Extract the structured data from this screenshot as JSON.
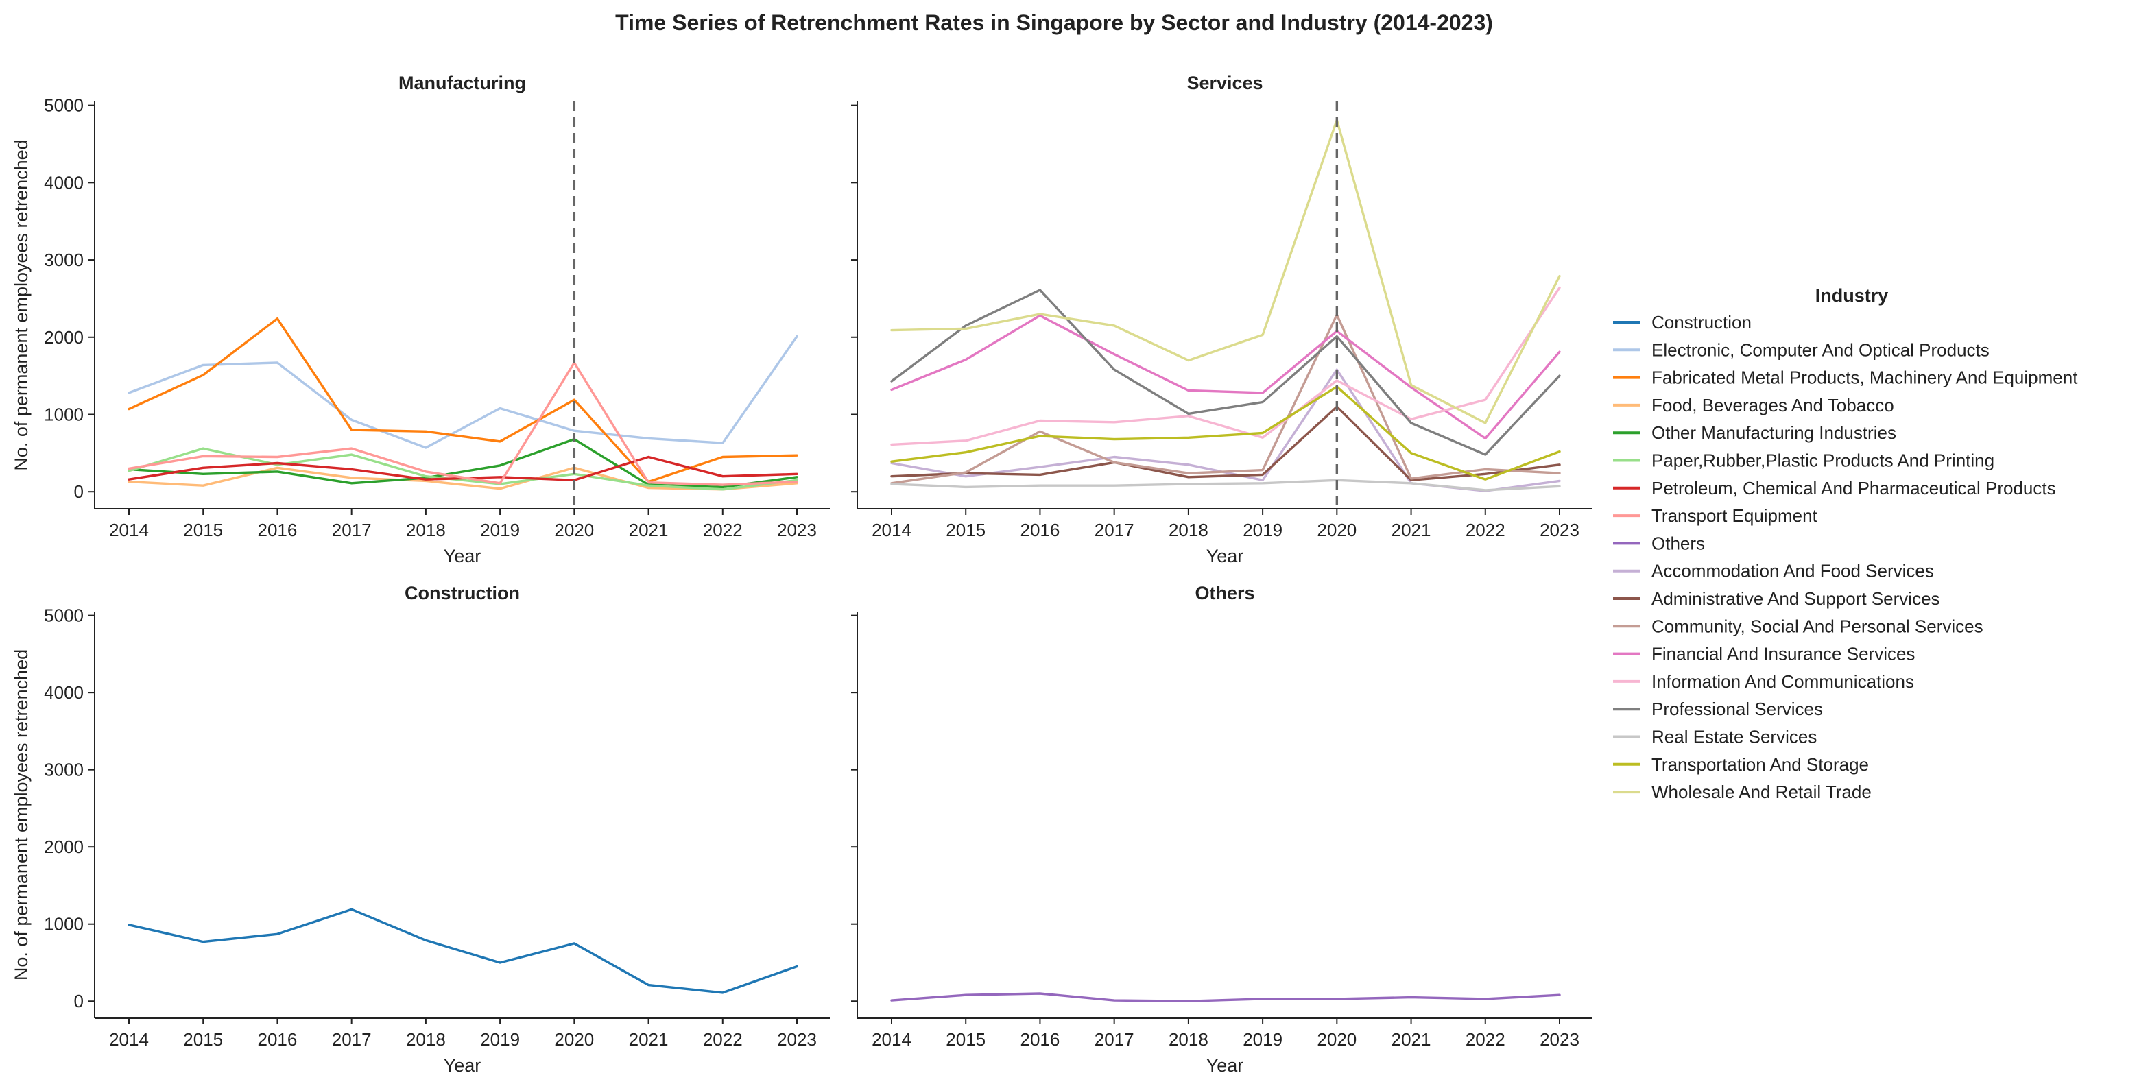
{
  "figure": {
    "title": "Time Series of Retrenchment Rates in Singapore by Sector and Industry (2014-2023)"
  },
  "chart_data": {
    "type": "line",
    "title": "Time Series of Retrenchment Rates in Singapore by Sector and Industry (2014-2023)",
    "x": [
      2014,
      2015,
      2016,
      2017,
      2018,
      2019,
      2020,
      2021,
      2022,
      2023
    ],
    "xlabel": "Year",
    "ylabel": "No. of permanent employees retrenched",
    "ylim": [
      -220,
      5050
    ],
    "yticks": [
      0,
      1000,
      2000,
      3000,
      4000,
      5000
    ],
    "grid": false,
    "reference_line_x": 2020,
    "legend": {
      "title": "Industry",
      "placement": "right"
    },
    "industries": [
      {
        "name": "Construction",
        "color": "#1f77b4"
      },
      {
        "name": "Electronic, Computer And Optical Products",
        "color": "#aec7e8"
      },
      {
        "name": "Fabricated Metal Products, Machinery And Equipment",
        "color": "#ff7f0e"
      },
      {
        "name": "Food, Beverages And Tobacco",
        "color": "#ffbb78"
      },
      {
        "name": "Other Manufacturing Industries",
        "color": "#2ca02c"
      },
      {
        "name": "Paper,Rubber,Plastic Products And Printing",
        "color": "#98df8a"
      },
      {
        "name": "Petroleum, Chemical And Pharmaceutical Products",
        "color": "#d62728"
      },
      {
        "name": "Transport Equipment",
        "color": "#ff9896"
      },
      {
        "name": "Others",
        "color": "#9467bd"
      },
      {
        "name": "Accommodation And Food Services",
        "color": "#c5b0d5"
      },
      {
        "name": "Administrative And Support Services",
        "color": "#8c564b"
      },
      {
        "name": "Community, Social And Personal Services",
        "color": "#c49c94"
      },
      {
        "name": "Financial And Insurance Services",
        "color": "#e377c2"
      },
      {
        "name": "Information And Communications",
        "color": "#f7b6d2"
      },
      {
        "name": "Professional Services",
        "color": "#7f7f7f"
      },
      {
        "name": "Real Estate Services",
        "color": "#c7c7c7"
      },
      {
        "name": "Transportation And Storage",
        "color": "#bcbd22"
      },
      {
        "name": "Wholesale And Retail Trade",
        "color": "#dbdb8d"
      }
    ],
    "panels": [
      {
        "title": "Manufacturing",
        "show_xlabel": true,
        "show_ylabel": true,
        "show_ytick_labels": true,
        "show_ref_line": true,
        "series": [
          {
            "name": "Electronic, Computer And Optical Products",
            "values": [
              1280,
              1640,
              1670,
              930,
              570,
              1080,
              790,
              690,
              630,
              2010
            ]
          },
          {
            "name": "Fabricated Metal Products, Machinery And Equipment",
            "values": [
              1070,
              1510,
              2240,
              800,
              780,
              650,
              1190,
              130,
              450,
              470
            ]
          },
          {
            "name": "Food, Beverages And Tobacco",
            "values": [
              130,
              80,
              310,
              180,
              140,
              40,
              310,
              50,
              30,
              110
            ]
          },
          {
            "name": "Other Manufacturing Industries",
            "values": [
              290,
              230,
              260,
              110,
              180,
              340,
              680,
              90,
              60,
              190
            ]
          },
          {
            "name": "Paper,Rubber,Plastic Products And Printing",
            "values": [
              270,
              560,
              350,
              480,
              200,
              100,
              230,
              80,
              30,
              150
            ]
          },
          {
            "name": "Petroleum, Chemical And Pharmaceutical Products",
            "values": [
              160,
              310,
              370,
              290,
              160,
              190,
              150,
              450,
              200,
              230
            ]
          },
          {
            "name": "Transport Equipment",
            "values": [
              300,
              460,
              450,
              560,
              260,
              110,
              1670,
              120,
              90,
              130
            ]
          }
        ]
      },
      {
        "title": "Services",
        "show_xlabel": true,
        "show_ylabel": false,
        "show_ytick_labels": false,
        "show_ref_line": true,
        "series": [
          {
            "name": "Accommodation And Food Services",
            "values": [
              370,
              200,
              320,
              450,
              350,
              150,
              1580,
              110,
              10,
              140
            ]
          },
          {
            "name": "Administrative And Support Services",
            "values": [
              200,
              240,
              220,
              380,
              190,
              220,
              1100,
              150,
              230,
              350
            ]
          },
          {
            "name": "Community, Social And Personal Services",
            "values": [
              110,
              250,
              780,
              380,
              240,
              280,
              2290,
              170,
              290,
              240
            ]
          },
          {
            "name": "Financial And Insurance Services",
            "values": [
              1320,
              1710,
              2280,
              1780,
              1310,
              1280,
              2080,
              1350,
              690,
              1810
            ]
          },
          {
            "name": "Information And Communications",
            "values": [
              610,
              660,
              920,
              900,
              980,
              700,
              1440,
              940,
              1190,
              2640
            ]
          },
          {
            "name": "Professional Services",
            "values": [
              1430,
              2150,
              2610,
              1580,
              1010,
              1160,
              2010,
              890,
              480,
              1500
            ]
          },
          {
            "name": "Real Estate Services",
            "values": [
              100,
              60,
              80,
              80,
              100,
              110,
              150,
              110,
              20,
              70
            ]
          },
          {
            "name": "Transportation And Storage",
            "values": [
              390,
              510,
              720,
              680,
              700,
              760,
              1360,
              500,
              160,
              520
            ]
          },
          {
            "name": "Wholesale And Retail Trade",
            "values": [
              2090,
              2110,
              2300,
              2150,
              1700,
              2030,
              4810,
              1380,
              890,
              2790
            ]
          }
        ]
      },
      {
        "title": "Construction",
        "show_xlabel": true,
        "show_ylabel": true,
        "show_ytick_labels": true,
        "show_ref_line": false,
        "series": [
          {
            "name": "Construction",
            "values": [
              990,
              770,
              870,
              1190,
              790,
              500,
              750,
              210,
              110,
              450
            ]
          }
        ]
      },
      {
        "title": "Others",
        "show_xlabel": true,
        "show_ylabel": false,
        "show_ytick_labels": false,
        "show_ref_line": false,
        "series": [
          {
            "name": "Others",
            "values": [
              10,
              80,
              100,
              10,
              0,
              30,
              30,
              50,
              30,
              80
            ]
          }
        ]
      }
    ]
  }
}
